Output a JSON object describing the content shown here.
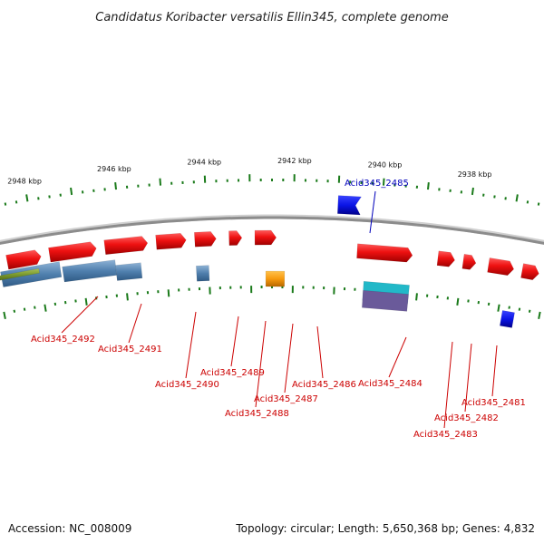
{
  "title": "Candidatus Koribacter versatilis Ellin345, complete genome",
  "footer": {
    "accession": "Accession: NC_008009",
    "summary": "Topology: circular; Length: 5,650,368 bp; Genes: 4,832"
  },
  "scale": {
    "unit": "kbp",
    "labels": [
      {
        "text": "2948 kbp",
        "kbp": 2948
      },
      {
        "text": "2946 kbp",
        "kbp": 2946
      },
      {
        "text": "2944 kbp",
        "kbp": 2944
      },
      {
        "text": "2942 kbp",
        "kbp": 2942
      },
      {
        "text": "2940 kbp",
        "kbp": 2940
      },
      {
        "text": "2938 kbp",
        "kbp": 2938
      }
    ]
  },
  "colors": {
    "backbone": "#8c8c8c",
    "cds": "#ee1111",
    "tick": "#1a7a1a",
    "label_default": "#cc0000",
    "label_highlight": "#0000bb",
    "highlight_gene": "#0a14e6"
  },
  "genes": [
    {
      "label": "Acid345_2492",
      "color": "#cc0000"
    },
    {
      "label": "Acid345_2491",
      "color": "#cc0000"
    },
    {
      "label": "Acid345_2490",
      "color": "#cc0000"
    },
    {
      "label": "Acid345_2489",
      "color": "#cc0000"
    },
    {
      "label": "Acid345_2488",
      "color": "#cc0000"
    },
    {
      "label": "Acid345_2487",
      "color": "#cc0000"
    },
    {
      "label": "Acid345_2486",
      "color": "#cc0000"
    },
    {
      "label": "Acid345_2485",
      "color": "#0000bb"
    },
    {
      "label": "Acid345_2484",
      "color": "#cc0000"
    },
    {
      "label": "Acid345_2483",
      "color": "#cc0000"
    },
    {
      "label": "Acid345_2482",
      "color": "#cc0000"
    },
    {
      "label": "Acid345_2481",
      "color": "#cc0000"
    }
  ]
}
